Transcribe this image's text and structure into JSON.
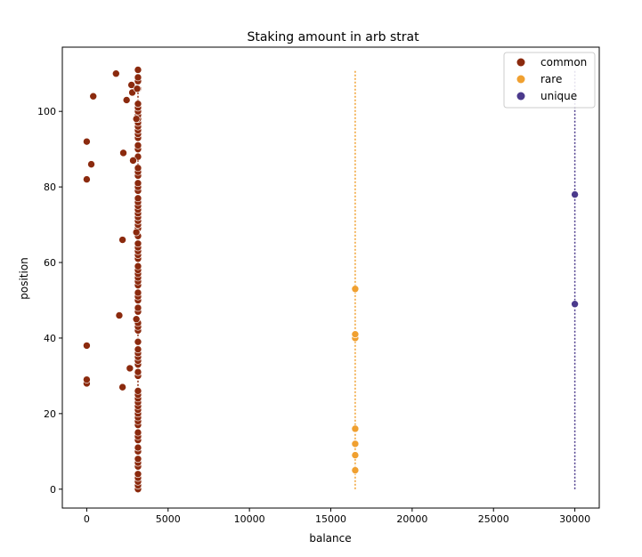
{
  "chart_data": {
    "type": "scatter",
    "title": "Staking amount in arb strat",
    "xlabel": "balance",
    "ylabel": "position",
    "xlim": [
      -1500,
      31500
    ],
    "ylim": [
      -5,
      117
    ],
    "xticks": [
      0,
      5000,
      10000,
      15000,
      20000,
      25000,
      30000
    ],
    "yticks": [
      0,
      20,
      40,
      60,
      80,
      100
    ],
    "grid": false,
    "legend_position": "top-right",
    "series": [
      {
        "name": "common",
        "color": "#8b2a0e",
        "vline": {
          "x": 3150,
          "y": [
            0,
            111
          ]
        },
        "points": [
          [
            3150,
            0
          ],
          [
            3150,
            1
          ],
          [
            3150,
            2
          ],
          [
            3150,
            3
          ],
          [
            3150,
            4
          ],
          [
            3150,
            6
          ],
          [
            3150,
            7
          ],
          [
            3150,
            8
          ],
          [
            3150,
            10
          ],
          [
            3150,
            11
          ],
          [
            3150,
            13
          ],
          [
            3150,
            14
          ],
          [
            3150,
            15
          ],
          [
            3150,
            17
          ],
          [
            3150,
            18
          ],
          [
            3150,
            19
          ],
          [
            3150,
            20
          ],
          [
            3150,
            21
          ],
          [
            3150,
            22
          ],
          [
            3150,
            23
          ],
          [
            3150,
            24
          ],
          [
            3150,
            25
          ],
          [
            3150,
            26
          ],
          [
            3150,
            30
          ],
          [
            3150,
            31
          ],
          [
            3150,
            33
          ],
          [
            3150,
            34
          ],
          [
            3150,
            35
          ],
          [
            3150,
            36
          ],
          [
            3150,
            37
          ],
          [
            3150,
            39
          ],
          [
            3150,
            42
          ],
          [
            3150,
            43
          ],
          [
            3150,
            44
          ],
          [
            3150,
            47
          ],
          [
            3150,
            48
          ],
          [
            3150,
            50
          ],
          [
            3150,
            51
          ],
          [
            3150,
            52
          ],
          [
            3150,
            54
          ],
          [
            3150,
            55
          ],
          [
            3150,
            56
          ],
          [
            3150,
            57
          ],
          [
            3150,
            58
          ],
          [
            3150,
            59
          ],
          [
            3150,
            61
          ],
          [
            3150,
            62
          ],
          [
            3150,
            63
          ],
          [
            3150,
            64
          ],
          [
            3150,
            65
          ],
          [
            3150,
            67
          ],
          [
            3150,
            69
          ],
          [
            3150,
            70
          ],
          [
            3150,
            71
          ],
          [
            3150,
            72
          ],
          [
            3150,
            73
          ],
          [
            3150,
            74
          ],
          [
            3150,
            75
          ],
          [
            3150,
            76
          ],
          [
            3150,
            77
          ],
          [
            3150,
            79
          ],
          [
            3150,
            80
          ],
          [
            3150,
            81
          ],
          [
            3150,
            83
          ],
          [
            3150,
            84
          ],
          [
            3150,
            85
          ],
          [
            3150,
            88
          ],
          [
            3150,
            90
          ],
          [
            3150,
            91
          ],
          [
            3150,
            93
          ],
          [
            3150,
            94
          ],
          [
            3150,
            95
          ],
          [
            3150,
            96
          ],
          [
            3150,
            97
          ],
          [
            3150,
            98
          ],
          [
            3150,
            99
          ],
          [
            3150,
            100
          ],
          [
            3150,
            101
          ],
          [
            3150,
            102
          ],
          [
            3150,
            106
          ],
          [
            3150,
            108
          ],
          [
            3150,
            109
          ],
          [
            3150,
            111
          ],
          [
            0,
            28
          ],
          [
            0,
            29
          ],
          [
            0,
            38
          ],
          [
            0,
            82
          ],
          [
            0,
            92
          ],
          [
            280,
            86
          ],
          [
            400,
            104
          ],
          [
            1800,
            110
          ],
          [
            2000,
            46
          ],
          [
            2200,
            27
          ],
          [
            2200,
            66
          ],
          [
            2250,
            89
          ],
          [
            2450,
            103
          ],
          [
            2650,
            32
          ],
          [
            2750,
            107
          ],
          [
            2800,
            105
          ],
          [
            2850,
            87
          ],
          [
            3050,
            45
          ],
          [
            3050,
            68
          ],
          [
            3100,
            106
          ],
          [
            3050,
            98
          ]
        ]
      },
      {
        "name": "rare",
        "color": "#f0a030",
        "vline": {
          "x": 16500,
          "y": [
            0,
            111
          ]
        },
        "points": [
          [
            16500,
            5
          ],
          [
            16500,
            9
          ],
          [
            16500,
            12
          ],
          [
            16500,
            16
          ],
          [
            16500,
            40
          ],
          [
            16500,
            41
          ],
          [
            16500,
            53
          ]
        ]
      },
      {
        "name": "unique",
        "color": "#4b3a8c",
        "vline": {
          "x": 30000,
          "y": [
            0,
            111
          ]
        },
        "points": [
          [
            30000,
            49
          ],
          [
            30000,
            78
          ]
        ]
      }
    ]
  }
}
